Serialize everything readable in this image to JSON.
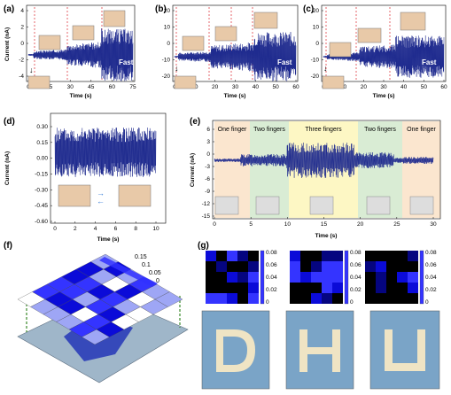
{
  "panels": {
    "a": {
      "label": "(a)",
      "ylabel": "Current (nA)",
      "xlabel": "Time (s)",
      "fast": "Fast",
      "yticks": [
        "4",
        "2",
        "0",
        "-2",
        "-4"
      ],
      "xticks": [
        "0",
        "15",
        "30",
        "45",
        "60",
        "75"
      ]
    },
    "b": {
      "label": "(b)",
      "xlabel": "Time (s)",
      "fast": "Fast",
      "yticks": [
        "20",
        "10",
        "0",
        "-10",
        "-20"
      ],
      "xticks": [
        "0",
        "10",
        "20",
        "30",
        "40",
        "50",
        "60"
      ]
    },
    "c": {
      "label": "(c)",
      "xlabel": "Time (s)",
      "fast": "Fast",
      "yticks": [
        "20",
        "10",
        "0",
        "-10",
        "-20"
      ],
      "xticks": [
        "0",
        "10",
        "20",
        "30",
        "40",
        "50",
        "60"
      ]
    },
    "d": {
      "label": "(d)",
      "ylabel": "Current (nA)",
      "xlabel": "Time (s)",
      "yticks": [
        "0.30",
        "0.15",
        "0.00",
        "-0.15",
        "-0.30",
        "-0.45",
        "-0.60"
      ],
      "xticks": [
        "0",
        "2",
        "4",
        "6",
        "8",
        "10"
      ]
    },
    "e": {
      "label": "(e)",
      "ylabel": "Current (nA)",
      "xlabel": "Time (s)",
      "yticks": [
        "6",
        "3",
        "0",
        "-3",
        "-6",
        "-9",
        "-12",
        "-15"
      ],
      "xticks": [
        "0",
        "5",
        "10",
        "15",
        "20",
        "25",
        "30"
      ],
      "regions": [
        {
          "name": "One finger",
          "color": "#fbe6cf"
        },
        {
          "name": "Two fingers",
          "color": "#d9ecd4"
        },
        {
          "name": "Three fingers",
          "color": "#fdf7c4"
        },
        {
          "name": "Two fingers",
          "color": "#d9ecd4"
        },
        {
          "name": "One finger",
          "color": "#fbe6cf"
        }
      ]
    },
    "f": {
      "label": "(f)",
      "legend": [
        "0.15",
        "0.1",
        "0.05",
        "0"
      ]
    },
    "g": {
      "label": "(g)",
      "colorbar": [
        "0.08",
        "0.06",
        "0.04",
        "0.02",
        "0"
      ]
    }
  },
  "colors": {
    "trace": "#1f2b8f",
    "dashed": "#d9262d",
    "heatmap": "#1a1aff"
  }
}
